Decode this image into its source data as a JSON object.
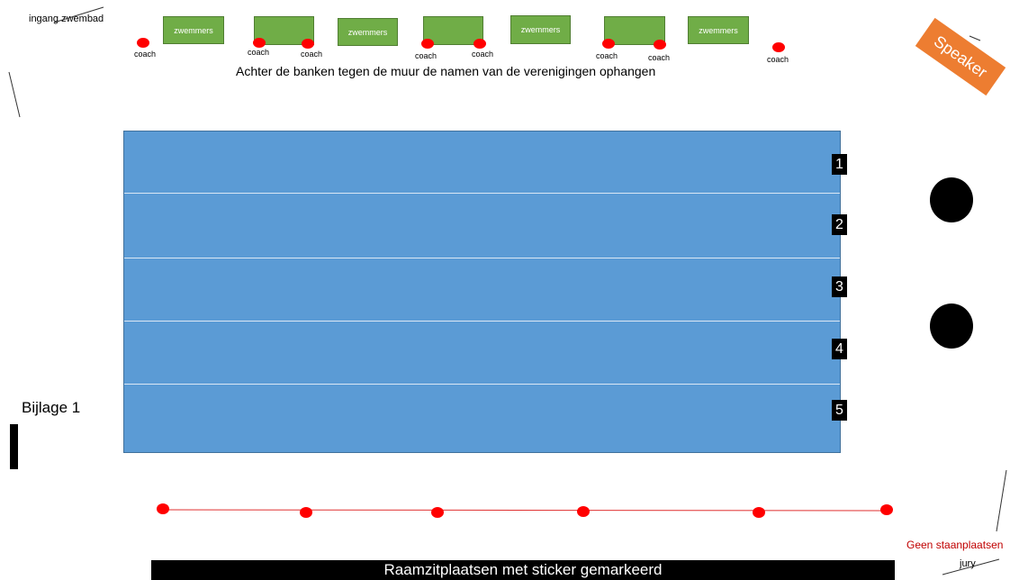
{
  "entrance_label": "ingang zwembad",
  "bench_label": "zwemmers",
  "coach_label": "coach",
  "instruction_text": "Achter de banken tegen de muur de namen van de verenigingen ophangen",
  "speaker_label": "Speaker",
  "lanes": [
    "1",
    "2",
    "3",
    "4",
    "5"
  ],
  "attachment_label": "Bijlage 1",
  "no_standing_label": "Geen staanplaatsen",
  "jury_label": "jury",
  "footer_label": "Raamzitplaatsen met sticker gemarkeerd",
  "colors": {
    "pool": "#5b9bd5",
    "bench": "#70ad47",
    "coach": "#ff0000",
    "speaker": "#ed7d31",
    "warning_text": "#c00000"
  }
}
